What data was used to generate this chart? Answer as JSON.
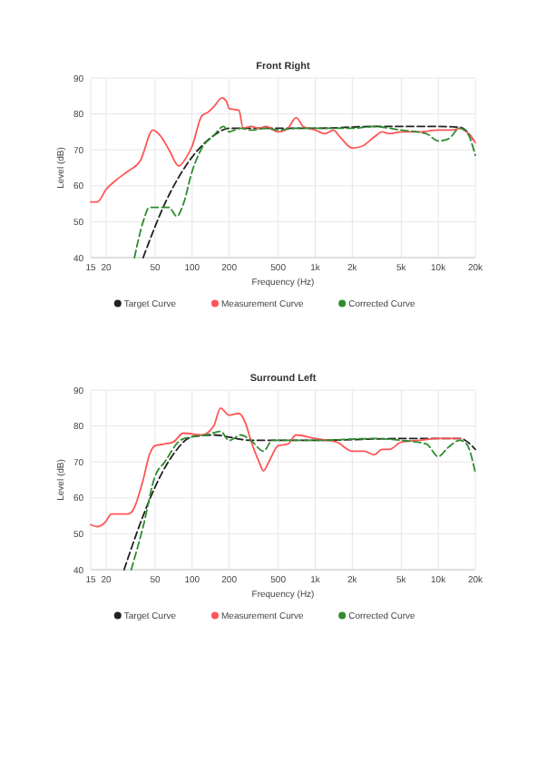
{
  "chart_data": [
    {
      "type": "line",
      "title": "Front Right",
      "xlabel": "Frequency (Hz)",
      "ylabel": "Level (dB)",
      "log": "x",
      "xlim": [
        15,
        20000
      ],
      "xticks": [
        15,
        20,
        50,
        100,
        200,
        500,
        {
          "value": 1000,
          "label": "1k"
        },
        {
          "value": 2000,
          "label": "2k"
        },
        {
          "value": 5000,
          "label": "5k"
        },
        {
          "value": 10000,
          "label": "10k"
        },
        {
          "value": 20000,
          "label": "20k"
        }
      ],
      "ylim": [
        40,
        90
      ],
      "yticks": [
        40,
        50,
        60,
        70,
        80,
        90
      ],
      "grid": true,
      "legend": "bottom",
      "series": [
        {
          "name": "Target Curve",
          "color": "#222222",
          "line_style": "dashed",
          "x": [
            40,
            60,
            100,
            150,
            200,
            500,
            1000,
            3000,
            10000,
            15000,
            20000
          ],
          "values": [
            40,
            55,
            68,
            74,
            76,
            76,
            76,
            76.5,
            76.5,
            76.3,
            72
          ]
        },
        {
          "name": "Measurement Curve",
          "color": "#ff5555",
          "line_style": "solid",
          "x": [
            15,
            17,
            20,
            25,
            30,
            38,
            48,
            55,
            65,
            78,
            90,
            100,
            120,
            135,
            150,
            175,
            190,
            200,
            240,
            260,
            300,
            350,
            400,
            500,
            600,
            700,
            800,
            1000,
            1200,
            1400,
            1600,
            2000,
            2400,
            3000,
            3500,
            4000,
            5000,
            7000,
            10000,
            13000,
            15000,
            17000,
            20000
          ],
          "values": [
            55.5,
            55.5,
            59,
            62,
            64,
            67,
            75.5,
            74,
            70,
            65.5,
            68,
            71,
            79.5,
            80.5,
            82,
            84.5,
            83.5,
            81.5,
            81,
            76,
            76.5,
            76,
            76.5,
            75,
            76,
            79,
            76.5,
            75.5,
            74.5,
            75.5,
            73.5,
            70.5,
            71,
            73.5,
            75,
            74.5,
            75,
            75,
            75.5,
            75.5,
            76,
            75,
            72
          ]
        },
        {
          "name": "Corrected Curve",
          "color": "#2e8b2e",
          "line_style": "dashed",
          "x": [
            34,
            40,
            45,
            55,
            65,
            75,
            85,
            100,
            120,
            150,
            180,
            200,
            220,
            250,
            300,
            400,
            500,
            700,
            1000,
            2000,
            3000,
            5000,
            8000,
            10000,
            12000,
            15000,
            17000,
            20000
          ],
          "values": [
            40,
            50,
            54,
            54,
            54,
            51.5,
            55,
            64,
            70.5,
            74,
            76.5,
            75,
            75.5,
            76,
            75.5,
            76,
            75.5,
            76,
            76,
            76,
            76.5,
            75.5,
            74.5,
            72.5,
            73,
            76,
            75,
            68.5
          ]
        }
      ]
    },
    {
      "type": "line",
      "title": "Surround Left",
      "xlabel": "Frequency (Hz)",
      "ylabel": "Level (dB)",
      "log": "x",
      "xlim": [
        15,
        20000
      ],
      "xticks": [
        15,
        20,
        50,
        100,
        200,
        500,
        {
          "value": 1000,
          "label": "1k"
        },
        {
          "value": 2000,
          "label": "2k"
        },
        {
          "value": 5000,
          "label": "5k"
        },
        {
          "value": 10000,
          "label": "10k"
        },
        {
          "value": 20000,
          "label": "20k"
        }
      ],
      "ylim": [
        40,
        90
      ],
      "yticks": [
        40,
        50,
        60,
        70,
        80,
        90
      ],
      "grid": true,
      "legend": "bottom",
      "series": [
        {
          "name": "Target Curve",
          "color": "#222222",
          "line_style": "dashed",
          "x": [
            28,
            40,
            50,
            70,
            100,
            150,
            300,
            1000,
            5000,
            15000,
            20000
          ],
          "values": [
            40,
            55,
            63,
            72,
            77,
            77.5,
            76,
            76,
            76.5,
            76.5,
            73.5
          ]
        },
        {
          "name": "Measurement Curve",
          "color": "#ff5555",
          "line_style": "solid",
          "x": [
            15,
            17,
            20,
            22,
            30,
            33,
            40,
            45,
            50,
            60,
            70,
            85,
            120,
            150,
            170,
            200,
            240,
            270,
            300,
            350,
            380,
            420,
            500,
            600,
            700,
            1000,
            1500,
            2000,
            2500,
            3000,
            3500,
            4000,
            5000,
            7000,
            10000,
            15000
          ],
          "values": [
            52.5,
            52,
            53.5,
            55.5,
            55.5,
            56.5,
            65,
            72,
            74.5,
            75,
            75.5,
            78,
            77.5,
            80,
            85,
            83,
            83.5,
            81,
            76,
            70,
            67.5,
            70,
            74.5,
            75,
            77.5,
            76.5,
            75.5,
            73,
            73,
            72,
            73.5,
            73.5,
            75.5,
            76,
            76.5,
            76.5
          ]
        },
        {
          "name": "Corrected Curve",
          "color": "#2e8b2e",
          "line_style": "dashed",
          "x": [
            32,
            40,
            50,
            60,
            80,
            100,
            130,
            170,
            200,
            250,
            300,
            380,
            450,
            600,
            1000,
            3000,
            5000,
            8000,
            10000,
            12000,
            15000,
            17000,
            20000
          ],
          "values": [
            40,
            52,
            66,
            70,
            76,
            77,
            77.5,
            78.5,
            76,
            77.5,
            76,
            73,
            76,
            76,
            76,
            76.5,
            76,
            75,
            71.5,
            74,
            76,
            75,
            67
          ]
        }
      ]
    }
  ]
}
